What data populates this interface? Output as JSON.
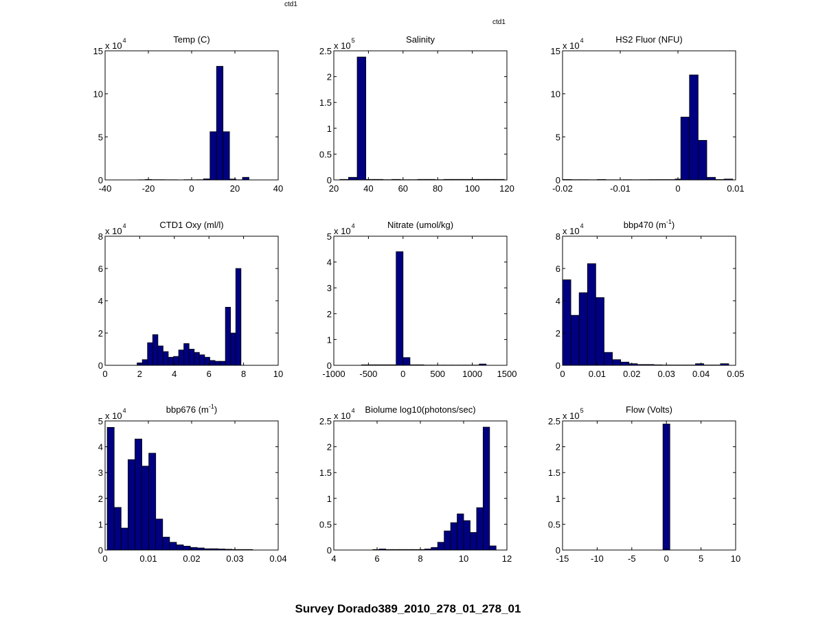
{
  "figure": {
    "title": "Survey Dorado389_2010_278_01_278_01",
    "tag_top": "ctd1",
    "tag_right": "ctd1",
    "bar_color": "#000080"
  },
  "chart_data": [
    {
      "type": "bar",
      "title": "Temp (C)",
      "title_sup": "",
      "xlim": [
        -40,
        40
      ],
      "xticks": [
        -40,
        -20,
        0,
        20,
        40
      ],
      "xtick_labels": [
        "-40",
        "-20",
        "0",
        "20",
        "40"
      ],
      "ylim": [
        0,
        15
      ],
      "yticks": [
        0,
        5,
        10,
        15
      ],
      "ytick_labels": [
        "0",
        "5",
        "10",
        "15"
      ],
      "exponent_base": "x 10",
      "exponent": "4",
      "bin_edges": [
        -24.5,
        -21.5,
        -18.5,
        -15.5,
        -12.5,
        -9.5,
        -6.5,
        -3.5,
        -0.5,
        2.5,
        5.5,
        8.5,
        11.5,
        14.5,
        17.5,
        20.5,
        23.5,
        26.5
      ],
      "values": [
        0.02,
        0.05,
        0.03,
        0.03,
        0.02,
        0.02,
        0.01,
        0.03,
        0.02,
        0.03,
        0.12,
        5.6,
        13.2,
        5.6,
        0.1,
        0.02,
        0.3
      ]
    },
    {
      "type": "bar",
      "title": "Salinity",
      "title_sup": "",
      "xlim": [
        20,
        120
      ],
      "xticks": [
        20,
        40,
        60,
        80,
        100,
        120
      ],
      "xtick_labels": [
        "20",
        "40",
        "60",
        "80",
        "100",
        "120"
      ],
      "ylim": [
        0,
        2.5
      ],
      "yticks": [
        0,
        0.5,
        1,
        1.5,
        2,
        2.5
      ],
      "ytick_labels": [
        "0",
        "0.5",
        "1",
        "1.5",
        "2",
        "2.5"
      ],
      "exponent_base": "x 10",
      "exponent": "5",
      "bin_edges": [
        23.5,
        28.5,
        33.5,
        38.5,
        43.5,
        48.5,
        53.5,
        58.5,
        63.5,
        68.5,
        73.5,
        78.5,
        83.5,
        88.5,
        93.5,
        98.5,
        103.5,
        108.5,
        113.5,
        118.5
      ],
      "values": [
        0.01,
        0.05,
        2.38,
        0.01,
        0.01,
        0.005,
        0.01,
        0.005,
        0.005,
        0.01,
        0.01,
        0.005,
        0.01,
        0.01,
        0.01,
        0.01,
        0.01,
        0.01,
        0.01
      ]
    },
    {
      "type": "bar",
      "title": "HS2 Fluor (NFU)",
      "title_sup": "",
      "xlim": [
        -0.02,
        0.01
      ],
      "xticks": [
        -0.02,
        -0.01,
        0,
        0.01
      ],
      "xtick_labels": [
        "-0.02",
        "-0.01",
        "0",
        "0.01"
      ],
      "ylim": [
        0,
        15
      ],
      "yticks": [
        0,
        5,
        10,
        15
      ],
      "ytick_labels": [
        "0",
        "5",
        "10",
        "15"
      ],
      "exponent_base": "x 10",
      "exponent": "4",
      "bin_edges": [
        -0.02,
        -0.0185,
        -0.017,
        -0.0155,
        -0.014,
        -0.0125,
        -0.011,
        -0.0095,
        -0.008,
        -0.0065,
        -0.005,
        -0.0035,
        -0.002,
        -0.0005,
        0.0005,
        0.002,
        0.0035,
        0.005,
        0.0065,
        0.008,
        0.0095
      ],
      "values": [
        0.05,
        0.03,
        0.03,
        0.02,
        0.05,
        0.02,
        0.02,
        0.03,
        0.02,
        0.03,
        0.04,
        0.04,
        0.04,
        0.1,
        7.3,
        12.2,
        4.6,
        0.3,
        0.05,
        0.1
      ]
    },
    {
      "type": "bar",
      "title": "CTD1 Oxy (ml/l)",
      "title_sup": "",
      "xlim": [
        0,
        10
      ],
      "xticks": [
        0,
        2,
        4,
        6,
        8,
        10
      ],
      "xtick_labels": [
        "0",
        "2",
        "4",
        "6",
        "8",
        "10"
      ],
      "ylim": [
        0,
        8
      ],
      "yticks": [
        0,
        2,
        4,
        6,
        8
      ],
      "ytick_labels": [
        "0",
        "2",
        "4",
        "6",
        "8"
      ],
      "exponent_base": "x 10",
      "exponent": "4",
      "bin_edges": [
        1.85,
        2.15,
        2.45,
        2.75,
        3.05,
        3.35,
        3.65,
        3.95,
        4.25,
        4.55,
        4.85,
        5.15,
        5.45,
        5.75,
        6.05,
        6.35,
        6.65,
        6.95,
        7.25,
        7.55,
        7.85
      ],
      "values": [
        0.15,
        0.35,
        1.4,
        1.9,
        1.2,
        0.85,
        0.5,
        0.55,
        0.95,
        1.35,
        1.0,
        0.8,
        0.65,
        0.5,
        0.3,
        0.25,
        0.25,
        3.6,
        2.0,
        6.0
      ]
    },
    {
      "type": "bar",
      "title": "Nitrate (umol/kg)",
      "title_sup": "",
      "xlim": [
        -1000,
        1500
      ],
      "xticks": [
        -1000,
        -500,
        0,
        500,
        1000,
        1500
      ],
      "xtick_labels": [
        "-1000",
        "-500",
        "0",
        "500",
        "1000",
        "1500"
      ],
      "ylim": [
        0,
        5
      ],
      "yticks": [
        0,
        1,
        2,
        3,
        4,
        5
      ],
      "ytick_labels": [
        "0",
        "1",
        "2",
        "3",
        "4",
        "5"
      ],
      "exponent_base": "x 10",
      "exponent": "4",
      "bin_edges": [
        -600,
        -500,
        -400,
        -300,
        -200,
        -100,
        0,
        100,
        200,
        300,
        400,
        500,
        600,
        700,
        800,
        900,
        1000,
        1100,
        1200
      ],
      "values": [
        0.02,
        0.02,
        0.02,
        0.02,
        0.02,
        4.4,
        0.3,
        0.02,
        0.02,
        0.01,
        0.01,
        0.01,
        0.01,
        0.01,
        0.01,
        0.01,
        0.01,
        0.05
      ]
    },
    {
      "type": "bar",
      "title": "bbp470 (m",
      "title_sup": "-1",
      "xlim": [
        0,
        0.05
      ],
      "xticks": [
        0,
        0.01,
        0.02,
        0.03,
        0.04,
        0.05
      ],
      "xtick_labels": [
        "0",
        "0.01",
        "0.02",
        "0.03",
        "0.04",
        "0.05"
      ],
      "ylim": [
        0,
        8
      ],
      "yticks": [
        0,
        2,
        4,
        6,
        8
      ],
      "ytick_labels": [
        "0",
        "2",
        "4",
        "6",
        "8"
      ],
      "exponent_base": "x 10",
      "exponent": "4",
      "bin_edges": [
        0,
        0.0024,
        0.0048,
        0.0072,
        0.0096,
        0.012,
        0.0144,
        0.0168,
        0.0192,
        0.0216,
        0.024,
        0.0264,
        0.0288,
        0.0312,
        0.0336,
        0.036,
        0.0384,
        0.0408,
        0.0432,
        0.0456,
        0.048
      ],
      "values": [
        5.3,
        3.1,
        4.5,
        6.3,
        4.2,
        0.8,
        0.35,
        0.2,
        0.1,
        0.05,
        0.05,
        0.03,
        0.02,
        0.02,
        0.02,
        0.02,
        0.1,
        0.02,
        0.02,
        0.1
      ]
    },
    {
      "type": "bar",
      "title": "bbp676 (m",
      "title_sup": "-1",
      "xlim": [
        0,
        0.04
      ],
      "xticks": [
        0,
        0.01,
        0.02,
        0.03,
        0.04
      ],
      "xtick_labels": [
        "0",
        "0.01",
        "0.02",
        "0.03",
        "0.04"
      ],
      "ylim": [
        0,
        5
      ],
      "yticks": [
        0,
        1,
        2,
        3,
        4,
        5
      ],
      "ytick_labels": [
        "0",
        "1",
        "2",
        "3",
        "4",
        "5"
      ],
      "exponent_base": "x 10",
      "exponent": "4",
      "bin_edges": [
        0.0005,
        0.0021,
        0.0037,
        0.0053,
        0.0069,
        0.0085,
        0.0101,
        0.0117,
        0.0133,
        0.0149,
        0.0165,
        0.0181,
        0.0197,
        0.0213,
        0.0229,
        0.0245,
        0.0261,
        0.0277,
        0.0293,
        0.0309,
        0.0325,
        0.0341
      ],
      "values": [
        4.75,
        1.65,
        0.85,
        3.5,
        4.3,
        3.25,
        3.75,
        1.2,
        0.5,
        0.3,
        0.2,
        0.15,
        0.1,
        0.08,
        0.05,
        0.05,
        0.04,
        0.03,
        0.02,
        0.02,
        0.02
      ]
    },
    {
      "type": "bar",
      "title": "Biolume log10(photons/sec)",
      "title_sup": "",
      "xlim": [
        4,
        12
      ],
      "xticks": [
        4,
        6,
        8,
        10,
        12
      ],
      "xtick_labels": [
        "4",
        "6",
        "8",
        "10",
        "12"
      ],
      "ylim": [
        0,
        2.5
      ],
      "yticks": [
        0,
        0.5,
        1,
        1.5,
        2,
        2.5
      ],
      "ytick_labels": [
        "0",
        "0.5",
        "1",
        "1.5",
        "2",
        "2.5"
      ],
      "exponent_base": "x 10",
      "exponent": "4",
      "bin_edges": [
        5.8,
        6.1,
        6.4,
        6.7,
        7.0,
        7.3,
        7.6,
        7.9,
        8.2,
        8.5,
        8.8,
        9.1,
        9.4,
        9.7,
        10.0,
        10.3,
        10.6,
        10.9,
        11.2,
        11.5
      ],
      "values": [
        0.01,
        0.02,
        0.01,
        0.01,
        0.01,
        0.01,
        0.01,
        0.01,
        0.02,
        0.05,
        0.15,
        0.37,
        0.53,
        0.7,
        0.57,
        0.34,
        0.82,
        2.38,
        0.08
      ]
    },
    {
      "type": "bar",
      "title": "Flow (Volts)",
      "title_sup": "",
      "xlim": [
        -15,
        10
      ],
      "xticks": [
        -15,
        -10,
        -5,
        0,
        5,
        10
      ],
      "xtick_labels": [
        "-15",
        "-10",
        "-5",
        "0",
        "5",
        "10"
      ],
      "ylim": [
        0,
        2.5
      ],
      "yticks": [
        0,
        0.5,
        1,
        1.5,
        2,
        2.5
      ],
      "ytick_labels": [
        "0",
        "0.5",
        "1",
        "1.5",
        "2",
        "2.5"
      ],
      "exponent_base": "x 10",
      "exponent": "5",
      "bin_edges": [
        -0.5,
        0.5
      ],
      "values": [
        2.44
      ]
    }
  ]
}
